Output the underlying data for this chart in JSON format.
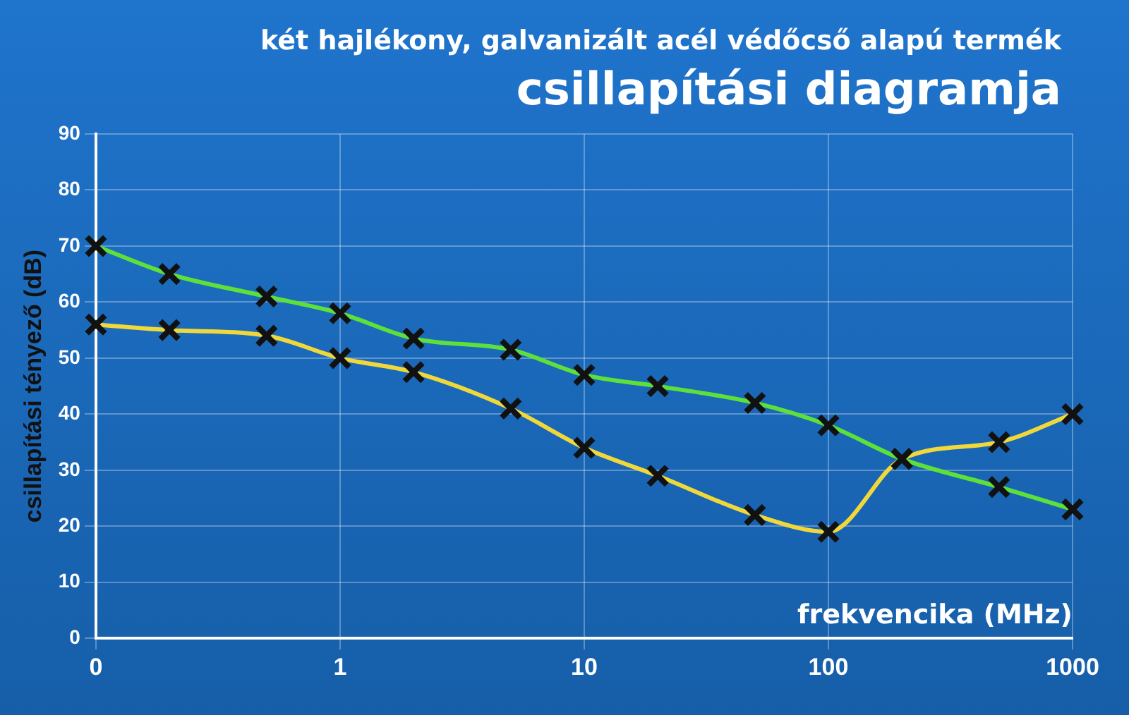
{
  "chart_data": {
    "type": "line",
    "title": "csillapítási diagramja",
    "subtitle": "két hajlékony, galvanizált acél védőcső alapú termék",
    "xlabel": "frekvencika (MHz)",
    "ylabel": "csillapítási tényező (dB)",
    "x": [
      0.1,
      0.2,
      0.5,
      1,
      2,
      5,
      10,
      20,
      50,
      100,
      200,
      500,
      1000
    ],
    "series": [
      {
        "color": "#5ee03a",
        "values": [
          70,
          65,
          61,
          58,
          53.5,
          51.5,
          47,
          45,
          42,
          38,
          32,
          27,
          23
        ]
      },
      {
        "color": "#f0d83a",
        "values": [
          56,
          55,
          54,
          50,
          47.5,
          41,
          34,
          29,
          22,
          19,
          32,
          35,
          40
        ]
      }
    ],
    "log": "x",
    "xlim": [
      0.1,
      1000
    ],
    "xticks": [
      {
        "value": 0.1,
        "label": "0"
      },
      1,
      10,
      100,
      1000
    ],
    "ylim": [
      0,
      90
    ],
    "yticks": [
      0,
      10,
      20,
      30,
      40,
      50,
      60,
      70,
      80,
      90
    ],
    "grid": true,
    "legend": false,
    "marker": "cross",
    "line_style": "solid"
  }
}
